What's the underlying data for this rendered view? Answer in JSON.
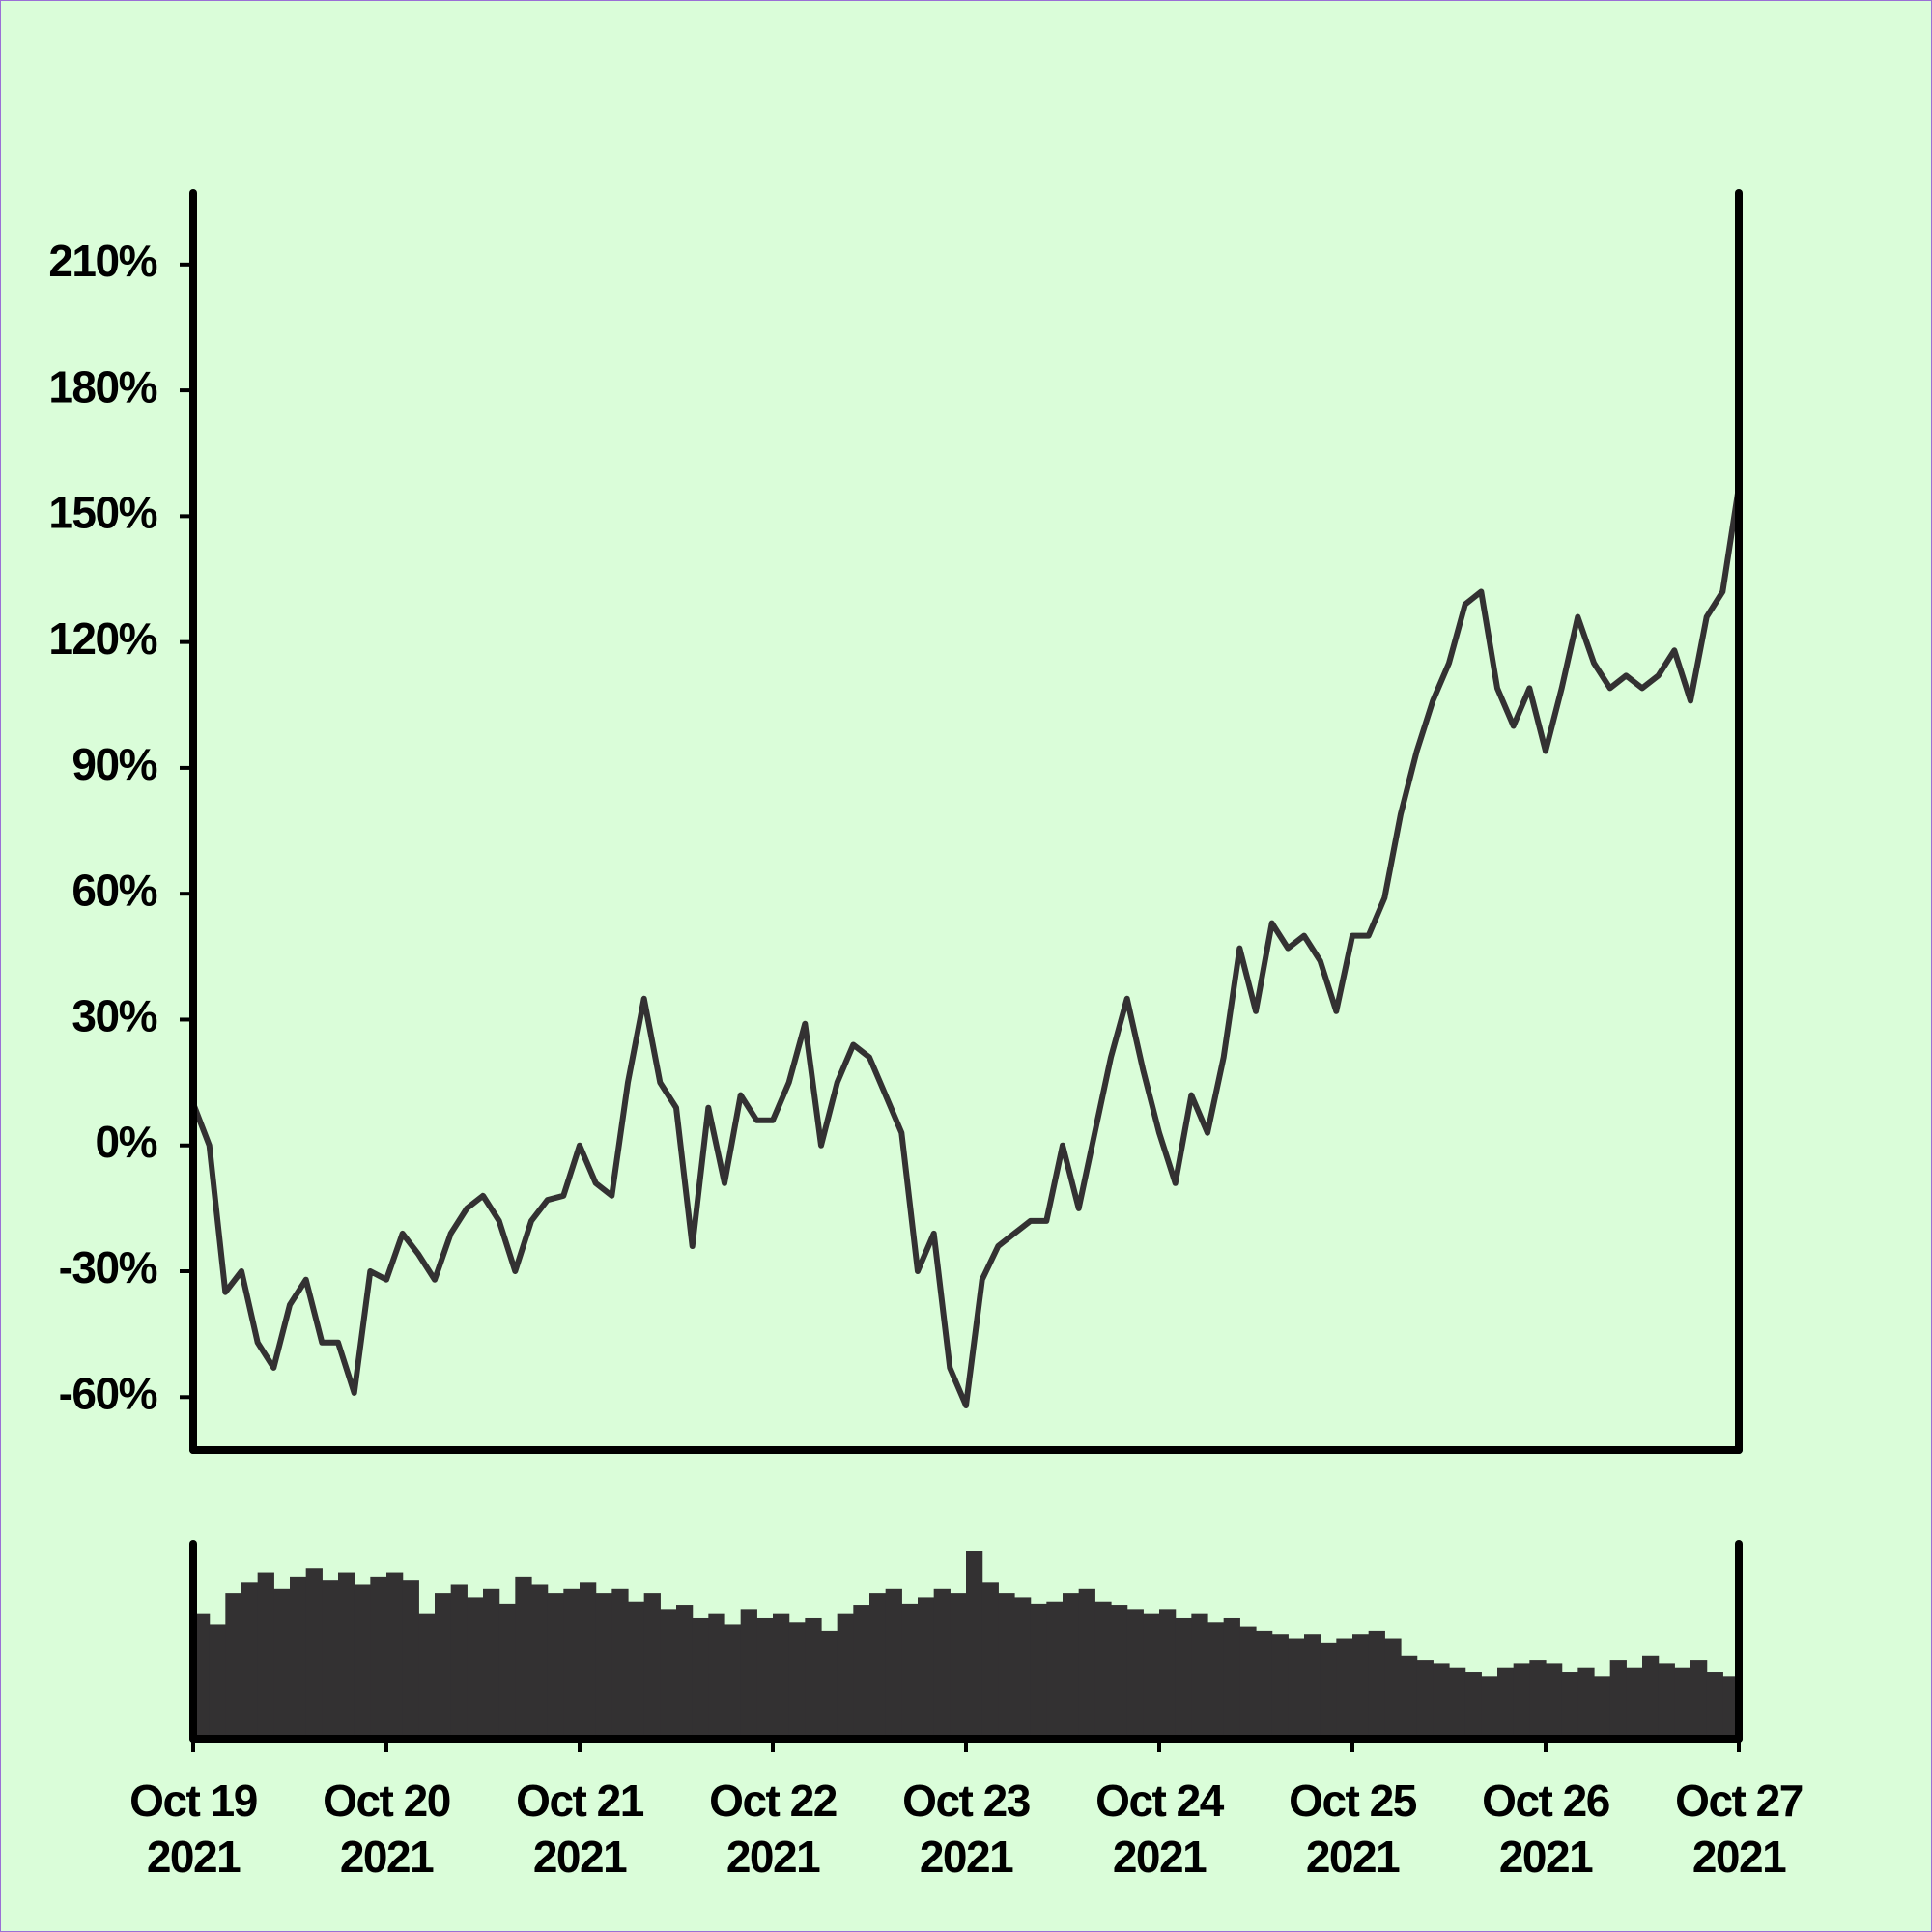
{
  "chart_data": {
    "type": "line",
    "color": "#333132",
    "x": [
      "2021-10-19T00:00",
      "2021-10-19T02:00",
      "2021-10-19T04:00",
      "2021-10-19T06:00",
      "2021-10-19T08:00",
      "2021-10-19T10:00",
      "2021-10-19T12:00",
      "2021-10-19T14:00",
      "2021-10-19T16:00",
      "2021-10-19T18:00",
      "2021-10-19T20:00",
      "2021-10-19T22:00",
      "2021-10-20T00:00",
      "2021-10-20T02:00",
      "2021-10-20T04:00",
      "2021-10-20T06:00",
      "2021-10-20T08:00",
      "2021-10-20T10:00",
      "2021-10-20T12:00",
      "2021-10-20T14:00",
      "2021-10-20T16:00",
      "2021-10-20T18:00",
      "2021-10-20T20:00",
      "2021-10-20T22:00",
      "2021-10-21T00:00",
      "2021-10-21T02:00",
      "2021-10-21T04:00",
      "2021-10-21T06:00",
      "2021-10-21T08:00",
      "2021-10-21T10:00",
      "2021-10-21T12:00",
      "2021-10-21T14:00",
      "2021-10-21T16:00",
      "2021-10-21T18:00",
      "2021-10-21T20:00",
      "2021-10-21T22:00",
      "2021-10-22T00:00",
      "2021-10-22T02:00",
      "2021-10-22T04:00",
      "2021-10-22T06:00",
      "2021-10-22T08:00",
      "2021-10-22T10:00",
      "2021-10-22T12:00",
      "2021-10-22T14:00",
      "2021-10-22T16:00",
      "2021-10-22T18:00",
      "2021-10-22T20:00",
      "2021-10-22T22:00",
      "2021-10-23T00:00",
      "2021-10-23T02:00",
      "2021-10-23T04:00",
      "2021-10-23T06:00",
      "2021-10-23T08:00",
      "2021-10-23T10:00",
      "2021-10-23T12:00",
      "2021-10-23T14:00",
      "2021-10-23T16:00",
      "2021-10-23T18:00",
      "2021-10-23T20:00",
      "2021-10-23T22:00",
      "2021-10-24T00:00",
      "2021-10-24T02:00",
      "2021-10-24T04:00",
      "2021-10-24T06:00",
      "2021-10-24T08:00",
      "2021-10-24T10:00",
      "2021-10-24T12:00",
      "2021-10-24T14:00",
      "2021-10-24T16:00",
      "2021-10-24T18:00",
      "2021-10-24T20:00",
      "2021-10-24T22:00",
      "2021-10-25T00:00",
      "2021-10-25T02:00",
      "2021-10-25T04:00",
      "2021-10-25T06:00",
      "2021-10-25T08:00",
      "2021-10-25T10:00",
      "2021-10-25T12:00",
      "2021-10-25T14:00",
      "2021-10-25T16:00",
      "2021-10-25T18:00",
      "2021-10-25T20:00",
      "2021-10-25T22:00",
      "2021-10-26T00:00",
      "2021-10-26T02:00",
      "2021-10-26T04:00",
      "2021-10-26T06:00",
      "2021-10-26T08:00",
      "2021-10-26T10:00",
      "2021-10-26T12:00",
      "2021-10-26T14:00",
      "2021-10-26T16:00",
      "2021-10-26T18:00",
      "2021-10-26T20:00",
      "2021-10-26T22:00",
      "2021-10-27T00:00"
    ],
    "values": [
      10,
      0,
      -35,
      -30,
      -47,
      -53,
      -38,
      -32,
      -47,
      -47,
      -59,
      -30,
      -32,
      -21,
      -26,
      -32,
      -21,
      -15,
      -12,
      -18,
      -30,
      -18,
      -13,
      -12,
      0,
      -9,
      -12,
      15,
      35,
      15,
      9,
      -24,
      9,
      -9,
      12,
      6,
      6,
      15,
      29,
      0,
      15,
      24,
      21,
      12,
      3,
      -30,
      -21,
      -53,
      -62,
      -32,
      -24,
      -21,
      -18,
      -18,
      0,
      -15,
      3,
      21,
      35,
      18,
      3,
      -9,
      12,
      3,
      21,
      47,
      32,
      53,
      47,
      50,
      44,
      32,
      50,
      50,
      59,
      79,
      94,
      106,
      115,
      129,
      132,
      109,
      100,
      109,
      94,
      109,
      126,
      115,
      109,
      112,
      109,
      112,
      118,
      106,
      126,
      132,
      157
    ],
    "xlim": [
      "2021-10-19T00:00",
      "2021-10-27T00:00"
    ],
    "ylim": [
      -72.6,
      227
    ],
    "yticks": [
      {
        "value": -60,
        "label": "-60%"
      },
      {
        "value": -30,
        "label": "-30%"
      },
      {
        "value": 0,
        "label": "0%"
      },
      {
        "value": 30,
        "label": "30%"
      },
      {
        "value": 60,
        "label": "60%"
      },
      {
        "value": 90,
        "label": "90%"
      },
      {
        "value": 120,
        "label": "120%"
      },
      {
        "value": 150,
        "label": "150%"
      },
      {
        "value": 180,
        "label": "180%"
      },
      {
        "value": 210,
        "label": "210%"
      }
    ],
    "xticks": [
      {
        "value": "2021-10-19T00:00",
        "label": [
          "Oct 19",
          "2021"
        ]
      },
      {
        "value": "2021-10-20T00:00",
        "label": [
          "Oct 20",
          "2021"
        ]
      },
      {
        "value": "2021-10-21T00:00",
        "label": [
          "Oct 21",
          "2021"
        ]
      },
      {
        "value": "2021-10-22T00:00",
        "label": [
          "Oct 22",
          "2021"
        ]
      },
      {
        "value": "2021-10-23T00:00",
        "label": [
          "Oct 23",
          "2021"
        ]
      },
      {
        "value": "2021-10-24T00:00",
        "label": [
          "Oct 24",
          "2021"
        ]
      },
      {
        "value": "2021-10-25T00:00",
        "label": [
          "Oct 25",
          "2021"
        ]
      },
      {
        "value": "2021-10-26T00:00",
        "label": [
          "Oct 26",
          "2021"
        ]
      },
      {
        "value": "2021-10-27T00:00",
        "label": [
          "Oct 27",
          "2021"
        ]
      }
    ],
    "volume": {
      "type": "bar",
      "color": "#333132",
      "values": [
        60,
        55,
        70,
        75,
        80,
        72,
        78,
        82,
        76,
        80,
        74,
        78,
        80,
        76,
        60,
        70,
        74,
        68,
        72,
        65,
        78,
        74,
        70,
        72,
        75,
        70,
        72,
        66,
        70,
        62,
        64,
        58,
        60,
        55,
        62,
        58,
        60,
        56,
        58,
        52,
        60,
        64,
        70,
        72,
        65,
        68,
        72,
        70,
        90,
        75,
        70,
        68,
        65,
        66,
        70,
        72,
        66,
        64,
        62,
        60,
        62,
        58,
        60,
        56,
        58,
        54,
        52,
        50,
        48,
        50,
        46,
        48,
        50,
        52,
        48,
        40,
        38,
        36,
        34,
        32,
        30,
        34,
        36,
        38,
        36,
        32,
        34,
        30,
        38,
        34,
        40,
        36,
        34,
        38,
        32,
        30,
        28
      ]
    }
  }
}
